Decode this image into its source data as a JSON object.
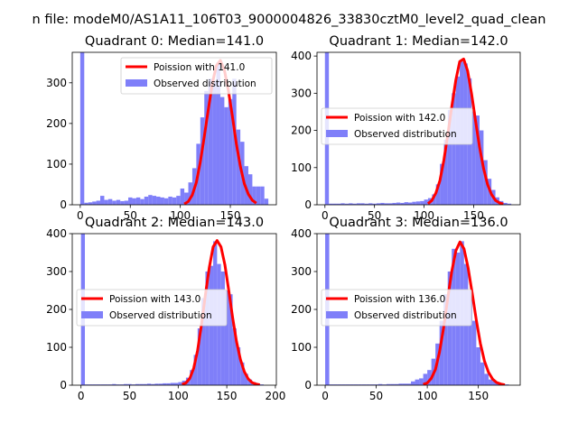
{
  "figure": {
    "suptitle": "n file: modeM0/AS1A11_106T03_9000004826_33830cztM0_level2_quad_clean"
  },
  "colors": {
    "poisson": "#ff0000",
    "observed": "#7f7ff9",
    "axis": "#000000",
    "background": "#ffffff"
  },
  "chart_data": [
    {
      "type": "bar+line",
      "title": "Quadrant 0: Median=141.0",
      "xlim": [
        -8,
        196
      ],
      "ylim": [
        0,
        375
      ],
      "xticks": [
        0,
        50,
        100,
        150
      ],
      "yticks": [
        0,
        100,
        200,
        300
      ],
      "legend_position": "upper-right",
      "legend": [
        "Poission with 141.0",
        "Observed distribution"
      ],
      "bin_width": 4,
      "bins_x": [
        0,
        4,
        8,
        12,
        16,
        20,
        24,
        28,
        32,
        36,
        40,
        44,
        48,
        52,
        56,
        60,
        64,
        68,
        72,
        76,
        80,
        84,
        88,
        92,
        96,
        100,
        104,
        108,
        112,
        116,
        120,
        124,
        128,
        132,
        136,
        140,
        144,
        148,
        152,
        156,
        160,
        164,
        168,
        172,
        176,
        180,
        184
      ],
      "bins_y": [
        375,
        5,
        6,
        8,
        10,
        22,
        12,
        14,
        10,
        12,
        9,
        10,
        18,
        16,
        18,
        14,
        20,
        24,
        22,
        20,
        18,
        16,
        20,
        18,
        22,
        40,
        30,
        55,
        90,
        150,
        215,
        280,
        310,
        305,
        350,
        265,
        240,
        260,
        310,
        185,
        155,
        95,
        75,
        45,
        45,
        45,
        15
      ],
      "poisson_x": [
        104,
        108,
        112,
        116,
        120,
        124,
        128,
        132,
        136,
        140,
        144,
        148,
        152,
        156,
        160,
        164,
        168,
        172,
        176
      ],
      "poisson_y": [
        2,
        8,
        24,
        55,
        105,
        168,
        235,
        298,
        342,
        355,
        332,
        282,
        218,
        150,
        95,
        52,
        26,
        11,
        4
      ]
    },
    {
      "type": "bar+line",
      "title": "Quadrant 1: Median=142.0",
      "xlim": [
        -8,
        197
      ],
      "ylim": [
        0,
        410
      ],
      "xticks": [
        0,
        50,
        100,
        150
      ],
      "yticks": [
        0,
        100,
        200,
        300,
        400
      ],
      "legend_position": "center-right",
      "legend": [
        "Poission with 142.0",
        "Observed distribution"
      ],
      "bin_width": 4,
      "bins_x": [
        0,
        4,
        8,
        12,
        16,
        20,
        24,
        28,
        32,
        36,
        40,
        44,
        48,
        52,
        56,
        60,
        64,
        68,
        72,
        76,
        80,
        84,
        88,
        92,
        96,
        100,
        104,
        108,
        112,
        116,
        120,
        124,
        128,
        132,
        136,
        140,
        144,
        148,
        152,
        156,
        160,
        164,
        168,
        172,
        176,
        180,
        184
      ],
      "bins_y": [
        410,
        3,
        3,
        3,
        4,
        3,
        4,
        3,
        4,
        4,
        3,
        4,
        3,
        4,
        5,
        4,
        4,
        5,
        6,
        5,
        7,
        6,
        8,
        9,
        10,
        14,
        18,
        28,
        55,
        110,
        175,
        255,
        300,
        345,
        385,
        380,
        340,
        250,
        240,
        200,
        120,
        70,
        40,
        20,
        10,
        5,
        3
      ],
      "poisson_x": [
        104,
        108,
        112,
        116,
        120,
        124,
        128,
        132,
        136,
        140,
        144,
        148,
        152,
        156,
        160,
        164,
        168,
        172,
        176,
        180
      ],
      "poisson_y": [
        3,
        12,
        32,
        65,
        120,
        190,
        265,
        335,
        385,
        392,
        360,
        298,
        225,
        155,
        98,
        55,
        28,
        12,
        5,
        2
      ]
    },
    {
      "type": "bar+line",
      "title": "Quadrant 2: Median=143.0",
      "xlim": [
        -9,
        201
      ],
      "ylim": [
        0,
        400
      ],
      "xticks": [
        0,
        50,
        100,
        150,
        200
      ],
      "yticks": [
        0,
        100,
        200,
        300,
        400
      ],
      "legend_position": "center-left",
      "legend": [
        "Poission with 143.0",
        "Observed distribution"
      ],
      "bin_width": 4,
      "bins_x": [
        0,
        4,
        8,
        12,
        16,
        20,
        24,
        28,
        32,
        36,
        40,
        44,
        48,
        52,
        56,
        60,
        64,
        68,
        72,
        76,
        80,
        84,
        88,
        92,
        96,
        100,
        104,
        108,
        112,
        116,
        120,
        124,
        128,
        132,
        136,
        140,
        144,
        148,
        152,
        156,
        160,
        164,
        168,
        172,
        176,
        180,
        184
      ],
      "bins_y": [
        400,
        2,
        2,
        2,
        2,
        2,
        2,
        2,
        3,
        2,
        2,
        3,
        3,
        2,
        3,
        3,
        3,
        4,
        3,
        4,
        4,
        5,
        5,
        6,
        6,
        8,
        12,
        20,
        40,
        80,
        150,
        230,
        300,
        315,
        380,
        320,
        300,
        250,
        240,
        150,
        100,
        60,
        30,
        15,
        8,
        4,
        2
      ],
      "poisson_x": [
        104,
        108,
        112,
        116,
        120,
        124,
        128,
        132,
        136,
        140,
        144,
        148,
        152,
        156,
        160,
        164,
        168,
        172,
        176,
        180,
        184
      ],
      "poisson_y": [
        2,
        6,
        18,
        45,
        92,
        160,
        238,
        310,
        365,
        382,
        365,
        318,
        250,
        178,
        115,
        68,
        36,
        17,
        7,
        3,
        1
      ]
    },
    {
      "type": "bar+line",
      "title": "Quadrant 3: Median=136.0",
      "xlim": [
        -8,
        191
      ],
      "ylim": [
        0,
        400
      ],
      "xticks": [
        0,
        50,
        100,
        150
      ],
      "yticks": [
        0,
        100,
        200,
        300,
        400
      ],
      "legend_position": "center-left",
      "legend": [
        "Poission with 136.0",
        "Observed distribution"
      ],
      "bin_width": 4,
      "bins_x": [
        0,
        4,
        8,
        12,
        16,
        20,
        24,
        28,
        32,
        36,
        40,
        44,
        48,
        52,
        56,
        60,
        64,
        68,
        72,
        76,
        80,
        84,
        88,
        92,
        96,
        100,
        104,
        108,
        112,
        116,
        120,
        124,
        128,
        132,
        136,
        140,
        144,
        148,
        152,
        156,
        160,
        164,
        168,
        172,
        176
      ],
      "bins_y": [
        400,
        2,
        2,
        2,
        2,
        2,
        2,
        2,
        2,
        2,
        2,
        2,
        2,
        3,
        2,
        3,
        3,
        3,
        4,
        4,
        4,
        10,
        15,
        18,
        30,
        40,
        70,
        110,
        170,
        240,
        300,
        360,
        350,
        380,
        320,
        250,
        170,
        100,
        60,
        30,
        15,
        10,
        5,
        3,
        2
      ],
      "poisson_x": [
        96,
        100,
        104,
        108,
        112,
        116,
        120,
        124,
        128,
        132,
        136,
        140,
        144,
        148,
        152,
        156,
        160,
        164,
        168,
        172,
        176
      ],
      "poisson_y": [
        2,
        6,
        18,
        42,
        88,
        152,
        228,
        300,
        355,
        378,
        360,
        310,
        242,
        172,
        110,
        64,
        34,
        16,
        7,
        3,
        1
      ]
    }
  ]
}
